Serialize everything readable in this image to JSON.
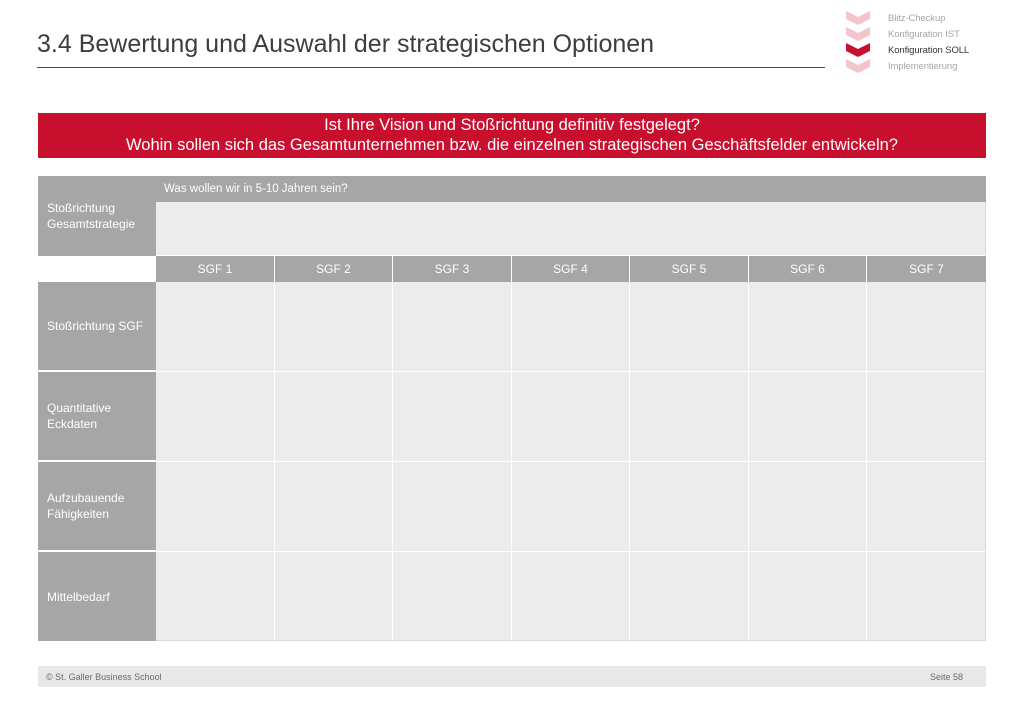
{
  "header": {
    "title": "3.4 Bewertung und Auswahl der strategischen Optionen"
  },
  "nav": {
    "items": [
      {
        "label": "Blitz-Checkup",
        "active": false
      },
      {
        "label": "Konfiguration IST",
        "active": false
      },
      {
        "label": "Konfiguration SOLL",
        "active": true
      },
      {
        "label": "Implementierung",
        "active": false
      }
    ],
    "colors": {
      "inactive": "#f2c4cc",
      "active": "#c8102e"
    }
  },
  "banner": {
    "line1": "Ist Ihre Vision und Stoßrichtung definitiv festgelegt?",
    "line2": "Wohin sollen sich das Gesamtunternehmen bzw. die einzelnen strategischen Geschäftsfelder entwickeln?"
  },
  "table": {
    "gesamt_label": "Stoßrichtung Gesamtstrategie",
    "gesamt_question": "Was wollen wir in 5-10 Jahren sein?",
    "columns": [
      "SGF 1",
      "SGF 2",
      "SGF 3",
      "SGF 4",
      "SGF 5",
      "SGF 6",
      "SGF 7"
    ],
    "rows": [
      {
        "label": "Stoßrichtung SGF"
      },
      {
        "label": "Quantitative Eckdaten"
      },
      {
        "label": "Aufzubauende Fähigkeiten"
      },
      {
        "label": "Mittelbedarf"
      }
    ]
  },
  "footer": {
    "copyright": "© St. Galler Business School",
    "page": "Seite 58"
  },
  "colors": {
    "accent": "#c8102e",
    "header_gray": "#a6a6a6",
    "cell_gray": "#ececec"
  }
}
